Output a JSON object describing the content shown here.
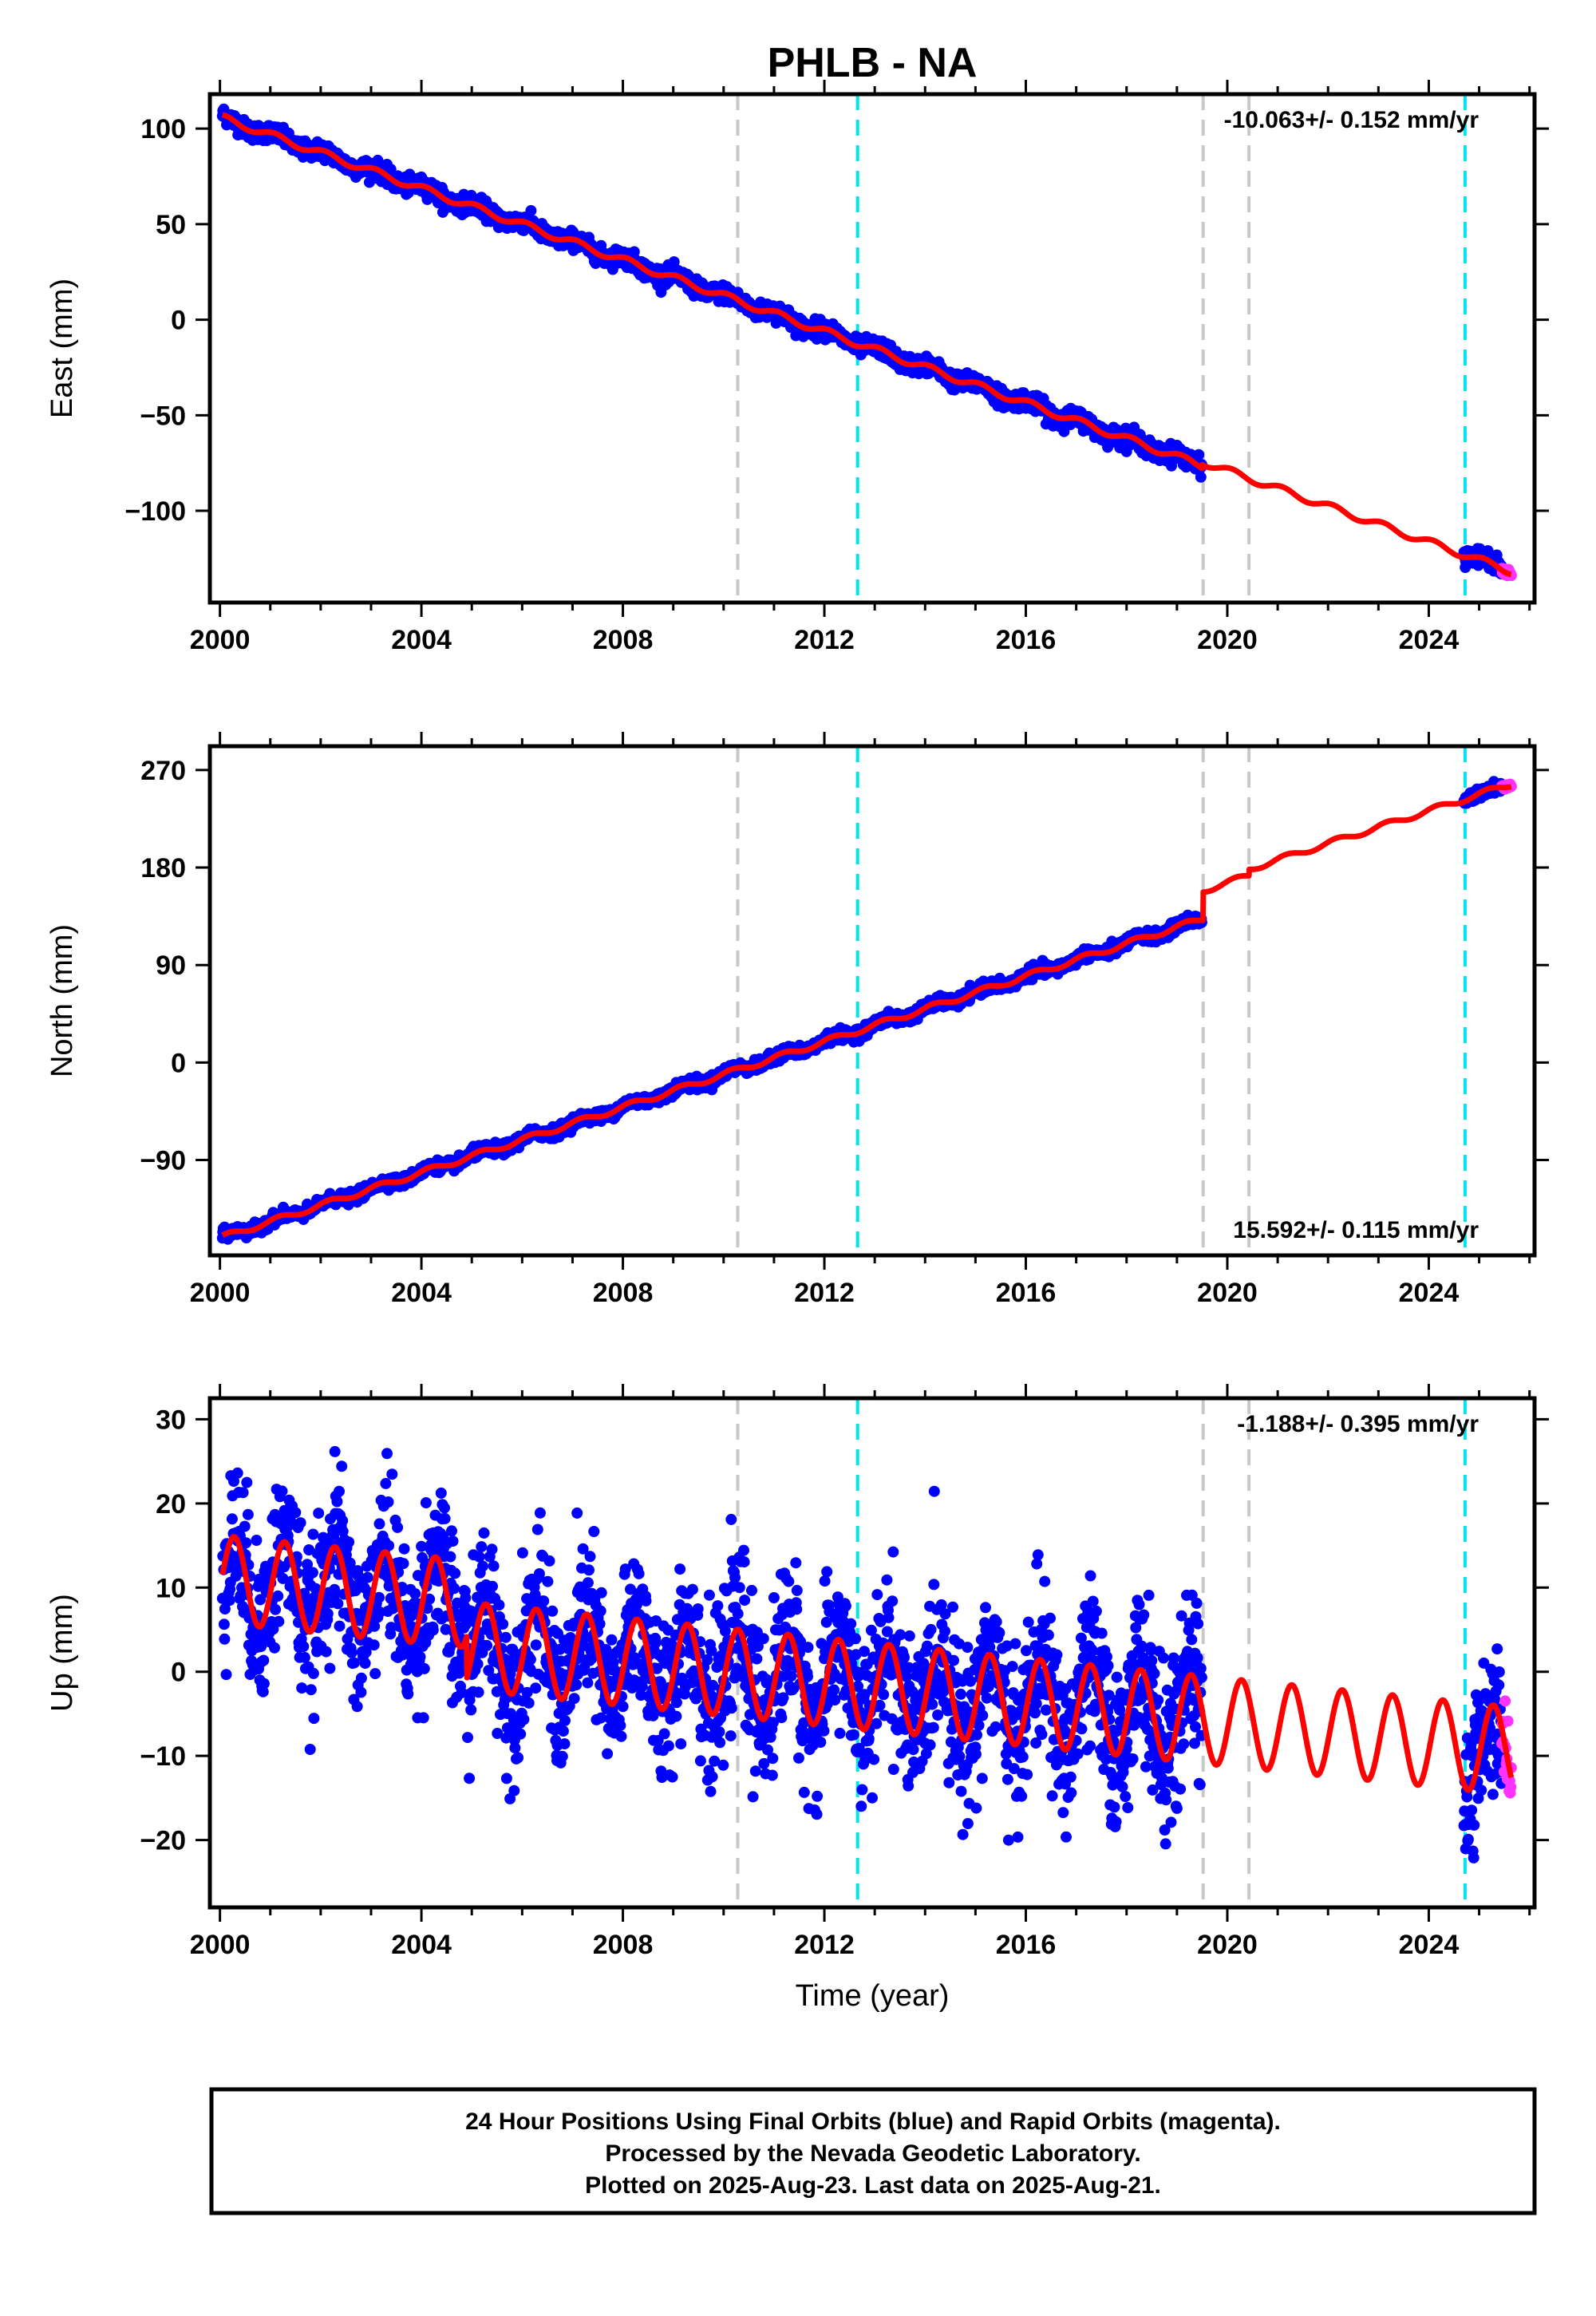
{
  "title": "PHLB - NA",
  "colors": {
    "final_points": "#0000ff",
    "rapid_points": "#ff33ff",
    "model_line": "#ff0000",
    "equipment_change": "#c8c8c8",
    "earthquake": "#00e5ee"
  },
  "footer": {
    "line1": "24 Hour Positions Using Final Orbits (blue) and Rapid Orbits (magenta).",
    "line2": "Processed by the Nevada Geodetic Laboratory.",
    "line3": "Plotted on 2025-Aug-23. Last data on 2025-Aug-21."
  },
  "chart_data": [
    {
      "type": "scatter",
      "ylabel": "East (mm)",
      "xlabel": "",
      "xlim": [
        1999.8,
        2026.1
      ],
      "ylim": [
        -148,
        118
      ],
      "xticks": [
        2000,
        2004,
        2008,
        2012,
        2016,
        2020,
        2024
      ],
      "yticks": [
        -100,
        -50,
        0,
        50,
        100
      ],
      "ytick_labels": [
        "−100",
        "−50",
        "0",
        "50",
        "100"
      ],
      "rate_text": "-10.063+/- 0.152 mm/yr",
      "rate_position": "top-right",
      "grid": false,
      "data_start": 2000.05,
      "data_gap": [
        2019.5,
        2024.7
      ],
      "rapid_start": 2025.45,
      "data_end": 2025.64,
      "model": {
        "intercept_at_2000": 106,
        "trend_mm_per_yr": -9.35,
        "annual_amp": 1.8,
        "annual_phase": 1.0,
        "steps": [
          {
            "x": 2019.5,
            "dy": 2
          }
        ]
      },
      "scatter_sd": 2.2,
      "lines_gray": [
        2010.28,
        2019.52,
        2020.43
      ],
      "lines_cyan": [
        2012.66,
        2024.72
      ],
      "series": [
        {
          "type": "scatter",
          "values": "final daily positions 2000.05-2019.5 and 2024.7-2025.45, approx. 106 to -87 mm"
        },
        {
          "type": "scatter",
          "values": "rapid positions 2025.45-2025.64, approx. -139 mm"
        },
        {
          "type": "line",
          "values": "model fit with linear trend and annual terms"
        }
      ]
    },
    {
      "type": "scatter",
      "ylabel": "North (mm)",
      "xlabel": "",
      "xlim": [
        1999.8,
        2026.1
      ],
      "ylim": [
        -178,
        292
      ],
      "xticks": [
        2000,
        2004,
        2008,
        2012,
        2016,
        2020,
        2024
      ],
      "yticks": [
        -90,
        0,
        90,
        180,
        270
      ],
      "ytick_labels": [
        "−90",
        "0",
        "90",
        "180",
        "270"
      ],
      "rate_text": "15.592+/- 0.115 mm/yr",
      "rate_position": "bottom-right",
      "grid": false,
      "data_start": 2000.05,
      "data_gap": [
        2019.5,
        2024.7
      ],
      "rapid_start": 2025.45,
      "data_end": 2025.64,
      "model": {
        "intercept_at_2000": -162,
        "trend_mm_per_yr": 15.1,
        "annual_amp": 2.5,
        "annual_phase": 0.5,
        "steps": [
          {
            "x": 2019.52,
            "dy": 26
          },
          {
            "x": 2020.43,
            "dy": 6
          }
        ]
      },
      "scatter_sd": 2.5,
      "lines_gray": [
        2010.28,
        2019.52,
        2020.43
      ],
      "lines_cyan": [
        2012.66,
        2024.72
      ],
      "series": [
        {
          "type": "scatter",
          "values": "final daily positions 2000.05-2019.5 and 2024.7-2025.45, approx. -162 to 280 mm"
        },
        {
          "type": "scatter",
          "values": "rapid positions 2025.45-2025.64, approx. 283 mm"
        },
        {
          "type": "line",
          "values": "model fit with linear trend, annual terms and offset at 2019.5"
        }
      ]
    },
    {
      "type": "scatter",
      "ylabel": "Up (mm)",
      "xlabel": "Time (year)",
      "xlim": [
        1999.8,
        2026.1
      ],
      "ylim": [
        -28,
        32.5
      ],
      "xticks": [
        2000,
        2004,
        2008,
        2012,
        2016,
        2020,
        2024
      ],
      "yticks": [
        -20,
        -10,
        0,
        10,
        20,
        30
      ],
      "ytick_labels": [
        "−20",
        "−10",
        "0",
        "10",
        "20",
        "30"
      ],
      "rate_text": "-1.188+/- 0.395 mm/yr",
      "rate_position": "top-right",
      "grid": false,
      "data_start": 2000.05,
      "data_gap": [
        2019.5,
        2024.7
      ],
      "rapid_start": 2025.45,
      "data_end": 2025.64,
      "model": {
        "intercept_at_2000": 11,
        "trend_mm_per_yr": -0.6,
        "annual_amp": 5.2,
        "annual_phase": -0.2,
        "steps": [
          {
            "x": 2004.9,
            "dy": -5
          }
        ]
      },
      "scatter_sd": 4.6,
      "lines_gray": [
        2010.28,
        2019.52,
        2020.43
      ],
      "lines_cyan": [
        2012.66,
        2024.72
      ],
      "series": [
        {
          "type": "scatter",
          "values": "final daily positions, strong annual signal, approx. -27 to 31 mm"
        },
        {
          "type": "scatter",
          "values": "rapid positions 2025.45-2025.64, approx. -3 to 7 mm"
        },
        {
          "type": "line",
          "values": "model fit with seasonal oscillation of about ±5 mm"
        }
      ]
    }
  ]
}
